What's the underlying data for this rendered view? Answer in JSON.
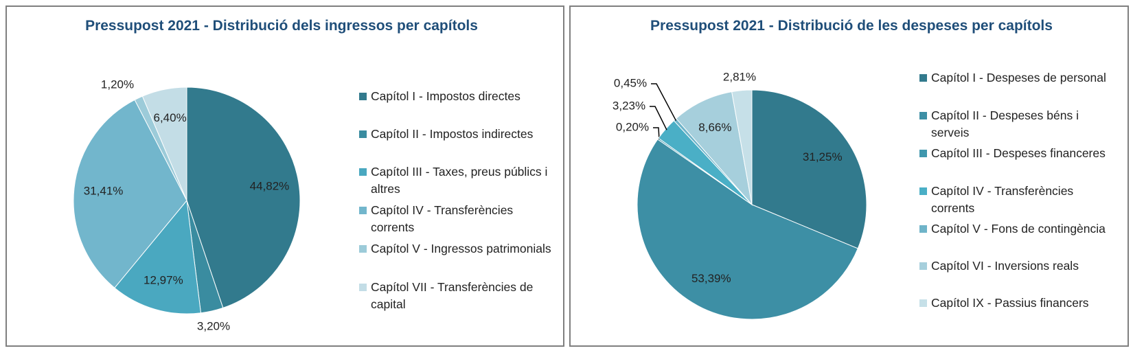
{
  "chart_data": [
    {
      "type": "pie",
      "title": "Pressupost 2021 - Distribució dels ingressos per capítols",
      "categories": [
        "Capítol I - Impostos directes",
        "Capítol II - Impostos indirectes",
        "Capítol III - Taxes, preus públics i altres",
        "Capítol IV - Transferències corrents",
        "Capítol V - Ingressos patrimonials",
        "Capítol VII - Transferències de capital"
      ],
      "values": [
        44.82,
        3.2,
        12.97,
        31.41,
        1.2,
        6.4
      ],
      "value_labels": [
        "44,82%",
        "3,20%",
        "12,97%",
        "31,41%",
        "1,20%",
        "6,40%"
      ],
      "colors": [
        "#327a8d",
        "#3a8ca0",
        "#4aa8c0",
        "#72b6cc",
        "#9ccbd9",
        "#c3dde6"
      ]
    },
    {
      "type": "pie",
      "title": "Pressupost 2021 - Distribució de les despeses per capítols",
      "categories": [
        "Capítol I - Despeses de personal",
        "Capítol II - Despeses béns i serveis",
        "Capítol III - Despeses financeres",
        "Capítol IV - Transferències corrents",
        "Capítol V - Fons de contingència",
        "Capítol VI - Inversions reals",
        "Capítol IX - Passius financers"
      ],
      "values": [
        31.25,
        53.39,
        0.2,
        3.23,
        0.45,
        8.66,
        2.81
      ],
      "value_labels": [
        "31,25%",
        "53,39%",
        "0,20%",
        "3,23%",
        "0,45%",
        "8,66%",
        "2,81%"
      ],
      "colors": [
        "#327a8d",
        "#3d8fa5",
        "#3f97ad",
        "#4aafc6",
        "#6fb4c9",
        "#a6cfdc",
        "#c6e0e8"
      ]
    }
  ]
}
